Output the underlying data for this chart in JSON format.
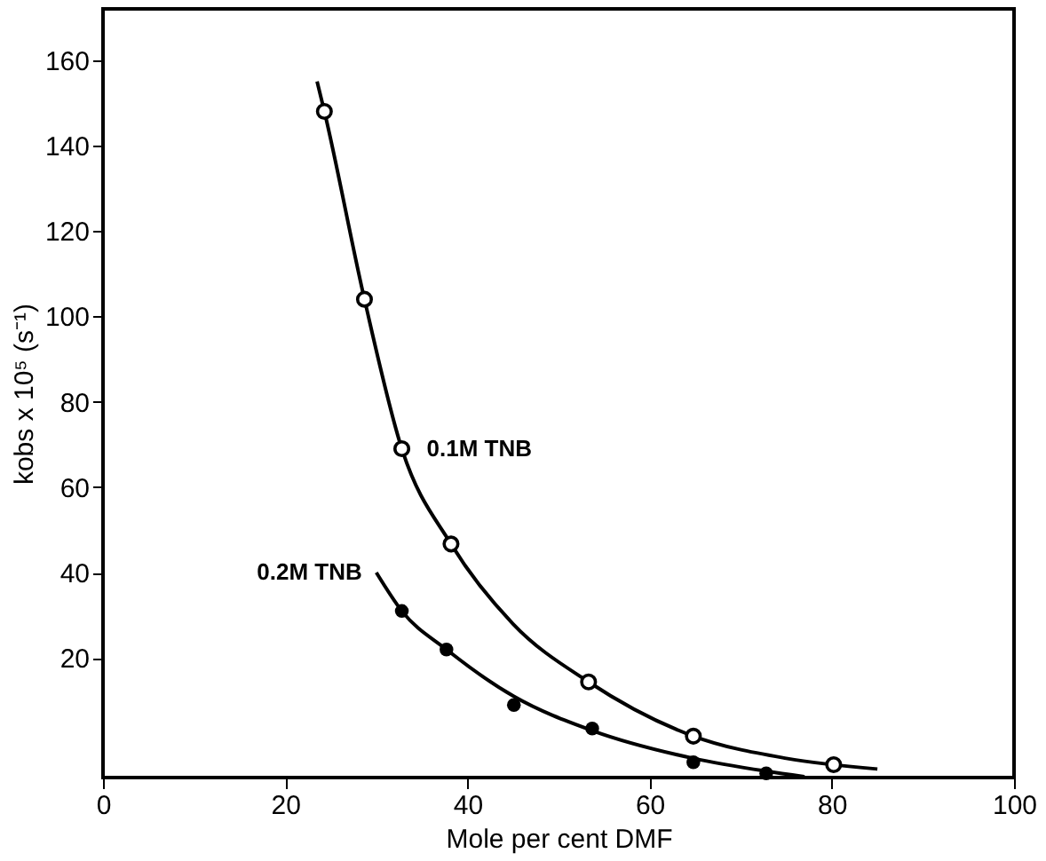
{
  "chart_data": {
    "type": "scatter",
    "xlabel": "Mole per cent DMF",
    "ylabel": "kobs x 10⁵ (s⁻¹)",
    "xlim": [
      0,
      100
    ],
    "ylim": [
      -8,
      172
    ],
    "xticks": [
      0,
      20,
      40,
      60,
      80,
      100
    ],
    "yticks": [
      20,
      40,
      60,
      80,
      100,
      120,
      140,
      160
    ],
    "grid": false,
    "legend": false,
    "marker": "circle",
    "series": [
      {
        "type": "line",
        "name": "0.1M TNB",
        "color": "#000000",
        "marker": "none",
        "line_style": "solid",
        "x": [
          23.5,
          24.3,
          28.7,
          32.8,
          38.2,
          45,
          53.3,
          64.8,
          75,
          85
        ],
        "values": [
          155,
          148,
          104,
          69,
          46.7,
          28,
          14.4,
          1.7,
          -3.5,
          -6
        ]
      },
      {
        "type": "line",
        "name": "0.2M TNB",
        "color": "#000000",
        "marker": "none",
        "line_style": "solid",
        "x": [
          30,
          32.8,
          37.7,
          45.1,
          53.7,
          64.8,
          72.8,
          77
        ],
        "values": [
          40,
          31,
          22,
          11,
          3,
          -3.5,
          -6.5,
          -7.8
        ]
      },
      {
        "color": "#000000",
        "x": [
          24.3,
          28.7,
          32.8,
          38.2,
          53.3,
          64.8,
          80.2
        ],
        "values": [
          148,
          104,
          69,
          46.7,
          14.4,
          1.7,
          -5
        ]
      },
      {
        "color": "#000000",
        "x": [
          32.8,
          37.7,
          45.1,
          53.7,
          64.8,
          72.8
        ],
        "values": [
          31,
          22,
          9,
          3.5,
          -4.4,
          -7
        ]
      }
    ]
  }
}
